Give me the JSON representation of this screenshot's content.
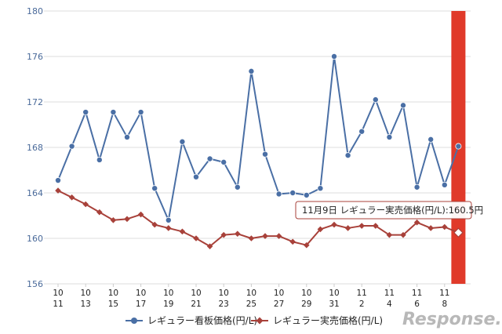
{
  "chart_data": {
    "type": "line",
    "title": "",
    "xlabel": "",
    "ylabel": "",
    "ylim": [
      156,
      180
    ],
    "yticks": [
      156,
      160,
      164,
      168,
      172,
      176,
      180
    ],
    "grid": "horizontal",
    "legend_position": "bottom",
    "x_month_labels": [
      "10",
      "10",
      "10",
      "10",
      "10",
      "10",
      "10",
      "10",
      "10",
      "10",
      "10",
      "11",
      "11",
      "11",
      "11"
    ],
    "x_day_labels": [
      "11",
      "13",
      "15",
      "17",
      "19",
      "21",
      "23",
      "25",
      "27",
      "29",
      "31",
      "2",
      "4",
      "6",
      "8"
    ],
    "x": [
      "10/11",
      "10/12",
      "10/13",
      "10/14",
      "10/15",
      "10/16",
      "10/17",
      "10/18",
      "10/19",
      "10/20",
      "10/21",
      "10/22",
      "10/23",
      "10/24",
      "10/25",
      "10/26",
      "10/27",
      "10/28",
      "10/29",
      "10/30",
      "10/31",
      "11/1",
      "11/2",
      "11/3",
      "11/4",
      "11/5",
      "11/6",
      "11/7",
      "11/8",
      "11/9"
    ],
    "series": [
      {
        "name": "レギュラー看板価格(円/L)",
        "color": "#4a6fa5",
        "marker": "circle",
        "values": [
          165.1,
          168.1,
          171.1,
          166.9,
          171.1,
          168.9,
          171.1,
          164.4,
          161.6,
          168.5,
          165.4,
          167.0,
          166.7,
          164.5,
          174.7,
          167.4,
          163.9,
          164.0,
          163.8,
          164.4,
          176.0,
          167.3,
          169.4,
          172.2,
          168.9,
          171.7,
          164.5,
          168.7,
          164.7,
          168.1
        ]
      },
      {
        "name": "レギュラー実売価格(円/L)",
        "color": "#a8413a",
        "marker": "diamond",
        "values": [
          164.2,
          163.6,
          163.0,
          162.3,
          161.6,
          161.7,
          162.1,
          161.2,
          160.9,
          160.6,
          160.0,
          159.3,
          160.3,
          160.4,
          160.0,
          160.2,
          160.2,
          159.7,
          159.4,
          160.8,
          161.2,
          160.9,
          161.1,
          161.1,
          160.3,
          160.3,
          161.4,
          160.9,
          161.0,
          160.5
        ]
      }
    ],
    "highlight": {
      "index": 29,
      "color": "#e03a2a"
    },
    "tooltip": {
      "text": "11月9日 レギュラー実売価格(円/L):160.5円"
    }
  },
  "watermark": {
    "text": "Response."
  }
}
